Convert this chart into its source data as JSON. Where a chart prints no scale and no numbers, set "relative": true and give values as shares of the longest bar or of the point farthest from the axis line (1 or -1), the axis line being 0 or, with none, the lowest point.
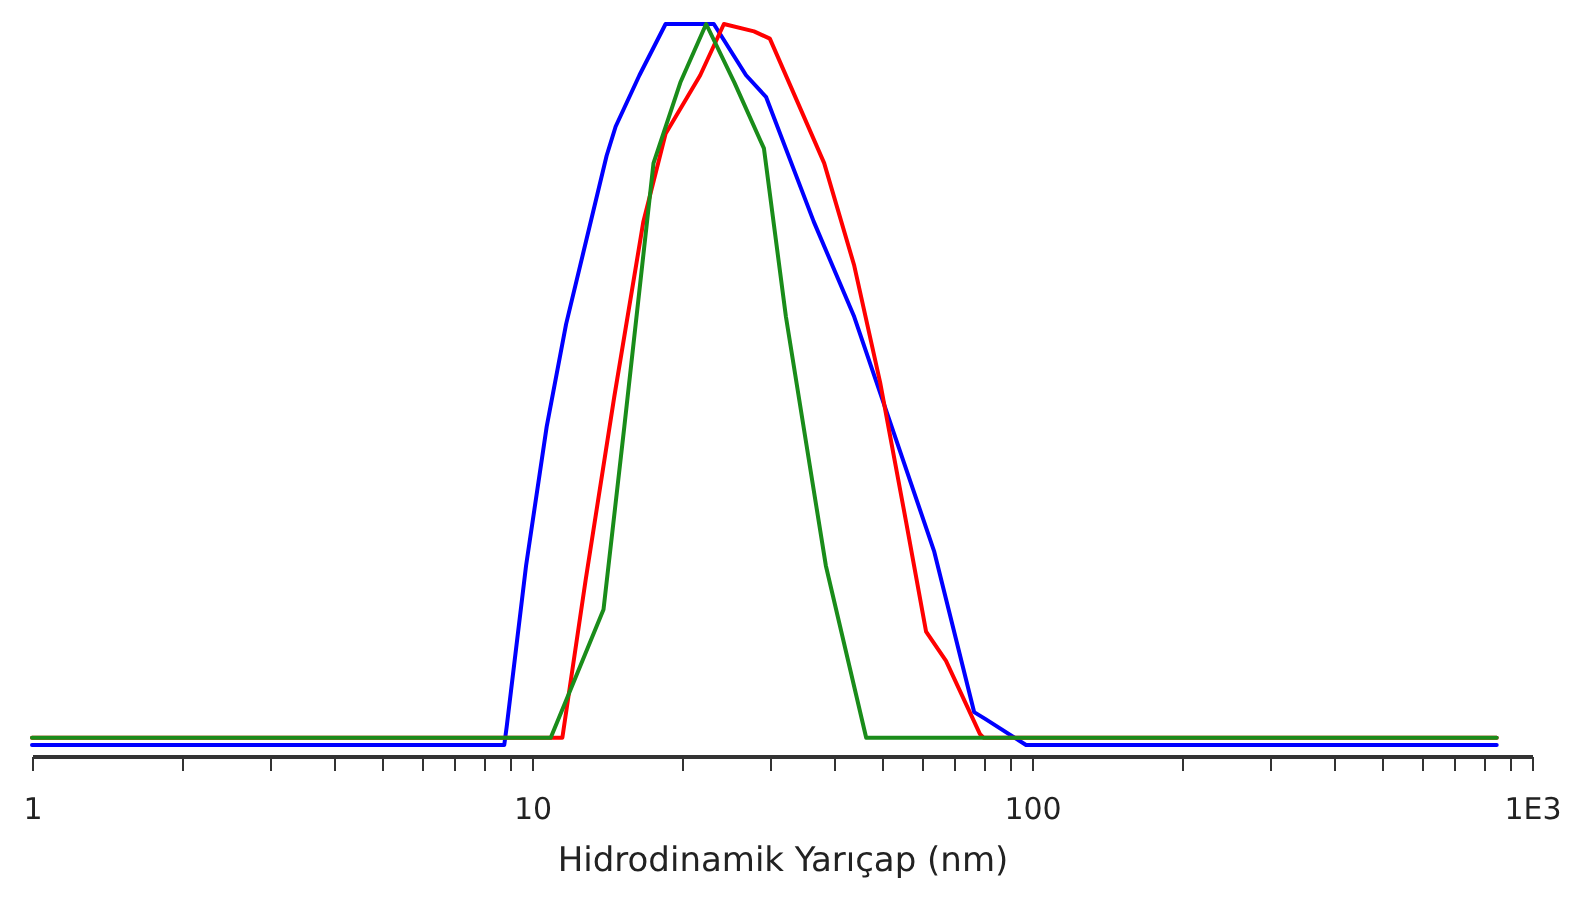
{
  "chart_data": {
    "type": "line",
    "xlabel": "Hidrodinamik Yarıçap (nm)",
    "relative": true,
    "log": "x",
    "grid": false,
    "xlim": [
      1,
      1000
    ],
    "xticks": [
      1,
      {
        "value": 2,
        "label": null
      },
      {
        "value": 3,
        "label": null
      },
      {
        "value": 4,
        "label": null
      },
      {
        "value": 5,
        "label": null
      },
      {
        "value": 6,
        "label": null
      },
      {
        "value": 7,
        "label": null
      },
      {
        "value": 8,
        "label": null
      },
      {
        "value": 9,
        "label": null
      },
      10,
      {
        "value": 20,
        "label": null
      },
      {
        "value": 30,
        "label": null
      },
      {
        "value": 40,
        "label": null
      },
      {
        "value": 50,
        "label": null
      },
      {
        "value": 60,
        "label": null
      },
      {
        "value": 70,
        "label": null
      },
      {
        "value": 80,
        "label": null
      },
      {
        "value": 90,
        "label": null
      },
      100,
      {
        "value": 200,
        "label": null
      },
      {
        "value": 300,
        "label": null
      },
      {
        "value": 400,
        "label": null
      },
      {
        "value": 500,
        "label": null
      },
      {
        "value": 600,
        "label": null
      },
      {
        "value": 700,
        "label": null
      },
      {
        "value": 800,
        "label": null
      },
      {
        "value": 900,
        "label": null
      },
      {
        "value": 1000,
        "label": "1E3"
      }
    ],
    "series": [
      {
        "color": "#0000ff",
        "x": [
          1,
          8.8,
          8.9,
          9.73,
          10.7,
          11.7,
          14.1,
          14.7,
          16.4,
          18.5,
          23.1,
          26.8,
          29.4,
          36.6,
          44.1,
          53,
          63.7,
          76.6,
          80.9,
          97.3,
          850
        ],
        "values": [
          0.015,
          0.015,
          0.04,
          0.26,
          0.45,
          0.59,
          0.82,
          0.86,
          0.93,
          1,
          1,
          0.93,
          0.9,
          0.73,
          0.6,
          0.44,
          0.28,
          0.06,
          0.05,
          0.015,
          0.015
        ]
      },
      {
        "color": "#ff0000",
        "x": [
          1,
          11.5,
          12.8,
          14.6,
          16.7,
          18.5,
          21.7,
          24.2,
          27.8,
          29.9,
          38.4,
          44.1,
          49.7,
          56,
          61.4,
          67.3,
          78.7,
          80,
          850
        ],
        "values": [
          0.025,
          0.025,
          0.24,
          0.49,
          0.73,
          0.85,
          0.93,
          1,
          0.99,
          0.98,
          0.81,
          0.67,
          0.51,
          0.32,
          0.17,
          0.13,
          0.03,
          0.025,
          0.025
        ]
      },
      {
        "color": "#1a8c1a",
        "x": [
          1,
          10.9,
          12.1,
          13.9,
          15.3,
          17.5,
          19.8,
          22.3,
          25.4,
          29.1,
          32.2,
          38.7,
          46.6,
          850
        ],
        "values": [
          0.025,
          0.025,
          0.1,
          0.2,
          0.45,
          0.81,
          0.92,
          1,
          0.92,
          0.83,
          0.6,
          0.26,
          0.025,
          0.025
        ]
      }
    ]
  }
}
